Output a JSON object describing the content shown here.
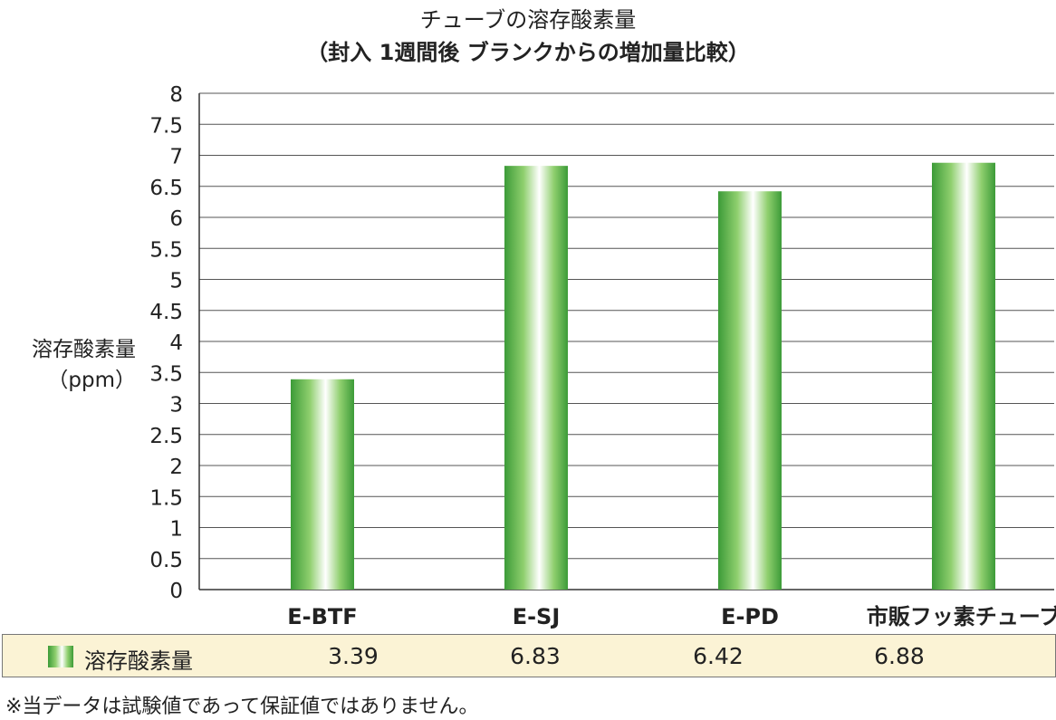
{
  "chart_data": {
    "type": "bar",
    "title": "チューブの溶存酸素量",
    "subtitle": "（封入 1週間後 ブランクからの増加量比較）",
    "ylabel": [
      "溶存酸素量",
      "（ppm）"
    ],
    "ylim": [
      0,
      8
    ],
    "yticks": [
      "0",
      "0.5",
      "1",
      "1.5",
      "2",
      "2.5",
      "3",
      "3.5",
      "4",
      "4.5",
      "5",
      "5.5",
      "6",
      "6.5",
      "7",
      "7.5",
      "8"
    ],
    "grid": true,
    "categories": [
      "E-BTF",
      "E-SJ",
      "E-PD",
      "市販フッ素チューブ"
    ],
    "series": [
      {
        "name": "溶存酸素量",
        "values": [
          3.39,
          6.83,
          6.42,
          6.88
        ]
      }
    ],
    "value_labels": [
      "3.39",
      "6.83",
      "6.42",
      "6.88"
    ],
    "bar_colors": {
      "edge": "#3c9b38",
      "mid": "#8fcf6e",
      "center": "#ffffff"
    },
    "legend": {
      "label": "溶存酸素量"
    }
  },
  "footnote": "※当データは試験値であって保証値ではありません。"
}
